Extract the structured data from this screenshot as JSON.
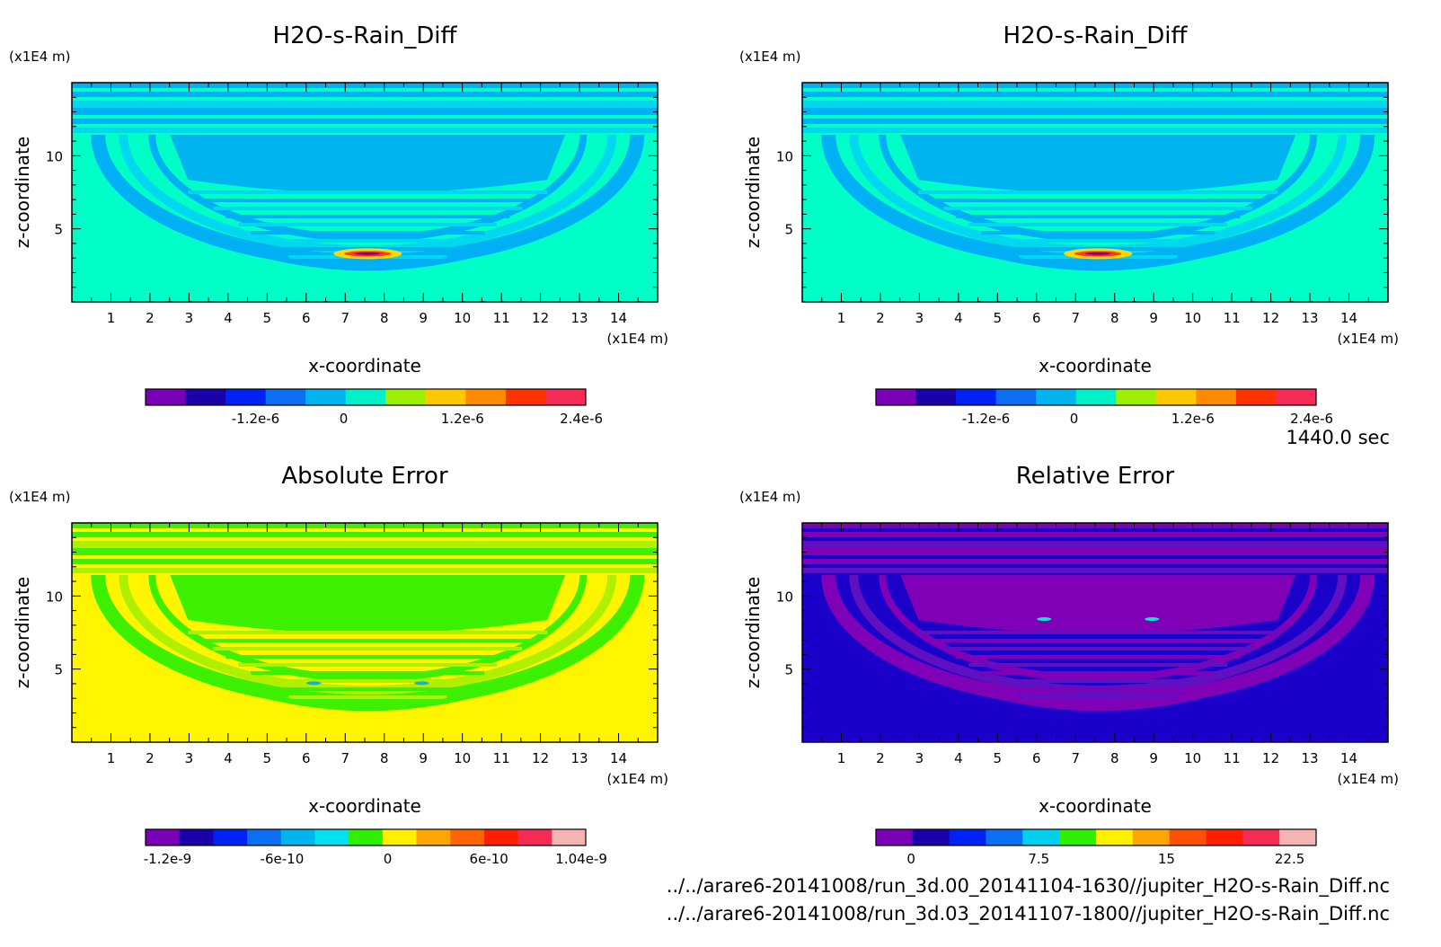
{
  "figure": {
    "time_label": "1440.0 sec",
    "files": [
      "../../arare6-20141008/run_3d.00_20141104-1630//jupiter_H2O-s-Rain_Diff.nc",
      "../../arare6-20141008/run_3d.03_20141107-1800//jupiter_H2O-s-Rain_Diff.nc"
    ]
  },
  "chart_data": [
    {
      "type": "heatmap",
      "title": "H2O-s-Rain_Diff",
      "xlabel": "x-coordinate",
      "ylabel": "z-coordinate",
      "x_unit": "(x1E4 m)",
      "y_unit": "(x1E4 m)",
      "xlim": [
        0,
        15
      ],
      "ylim": [
        0,
        15
      ],
      "x_ticks": [
        1,
        2,
        3,
        4,
        5,
        6,
        7,
        8,
        9,
        10,
        11,
        12,
        13,
        14
      ],
      "y_ticks": [
        5,
        10
      ],
      "field": "rain",
      "colorbar": {
        "colors": [
          "#7a00b8",
          "#1a00a8",
          "#0022f5",
          "#0a6ff0",
          "#00b4f0",
          "#00f0c8",
          "#9cf000",
          "#ffc800",
          "#ff8a00",
          "#ff3200",
          "#f52a55"
        ],
        "tick_labels": [
          "-1.2e-6",
          "0",
          "1.2e-6",
          "2.4e-6"
        ]
      }
    },
    {
      "type": "heatmap",
      "title": "H2O-s-Rain_Diff",
      "xlabel": "x-coordinate",
      "ylabel": "z-coordinate",
      "x_unit": "(x1E4 m)",
      "y_unit": "(x1E4 m)",
      "xlim": [
        0,
        15
      ],
      "ylim": [
        0,
        15
      ],
      "x_ticks": [
        1,
        2,
        3,
        4,
        5,
        6,
        7,
        8,
        9,
        10,
        11,
        12,
        13,
        14
      ],
      "y_ticks": [
        5,
        10
      ],
      "field": "rain",
      "colorbar": {
        "colors": [
          "#7a00b8",
          "#1a00a8",
          "#0022f5",
          "#0a6ff0",
          "#00b4f0",
          "#00f0c8",
          "#9cf000",
          "#ffc800",
          "#ff8a00",
          "#ff3200",
          "#f52a55"
        ],
        "tick_labels": [
          "-1.2e-6",
          "0",
          "1.2e-6",
          "2.4e-6"
        ]
      }
    },
    {
      "type": "heatmap",
      "title": "Absolute Error",
      "xlabel": "x-coordinate",
      "ylabel": "z-coordinate",
      "x_unit": "(x1E4 m)",
      "y_unit": "(x1E4 m)",
      "xlim": [
        0,
        15
      ],
      "ylim": [
        0,
        15
      ],
      "x_ticks": [
        1,
        2,
        3,
        4,
        5,
        6,
        7,
        8,
        9,
        10,
        11,
        12,
        13,
        14
      ],
      "y_ticks": [
        5,
        10
      ],
      "field": "abs",
      "colorbar": {
        "colors": [
          "#7a00b8",
          "#1a00a8",
          "#0022f5",
          "#0a6ff0",
          "#00b4f0",
          "#00e0f0",
          "#2ef000",
          "#fff000",
          "#ffa500",
          "#ff6400",
          "#ff1e00",
          "#f52a55",
          "#f5b4b4"
        ],
        "tick_labels": [
          "-1.2e-9",
          "-6e-10",
          "0",
          "6e-10",
          "1.04e-9"
        ]
      }
    },
    {
      "type": "heatmap",
      "title": "Relative Error",
      "xlabel": "x-coordinate",
      "ylabel": "z-coordinate",
      "x_unit": "(x1E4 m)",
      "y_unit": "(x1E4 m)",
      "xlim": [
        0,
        15
      ],
      "ylim": [
        0,
        15
      ],
      "x_ticks": [
        1,
        2,
        3,
        4,
        5,
        6,
        7,
        8,
        9,
        10,
        11,
        12,
        13,
        14
      ],
      "y_ticks": [
        5,
        10
      ],
      "field": "rel",
      "colorbar": {
        "colors": [
          "#7a00b8",
          "#1a00a8",
          "#0022f5",
          "#0a6ff0",
          "#00d0f0",
          "#2ef000",
          "#fff000",
          "#ffa500",
          "#ff5000",
          "#ff1e00",
          "#f52a55",
          "#f5b4b4"
        ],
        "tick_labels": [
          "0",
          "7.5",
          "15",
          "22.5"
        ]
      }
    }
  ]
}
